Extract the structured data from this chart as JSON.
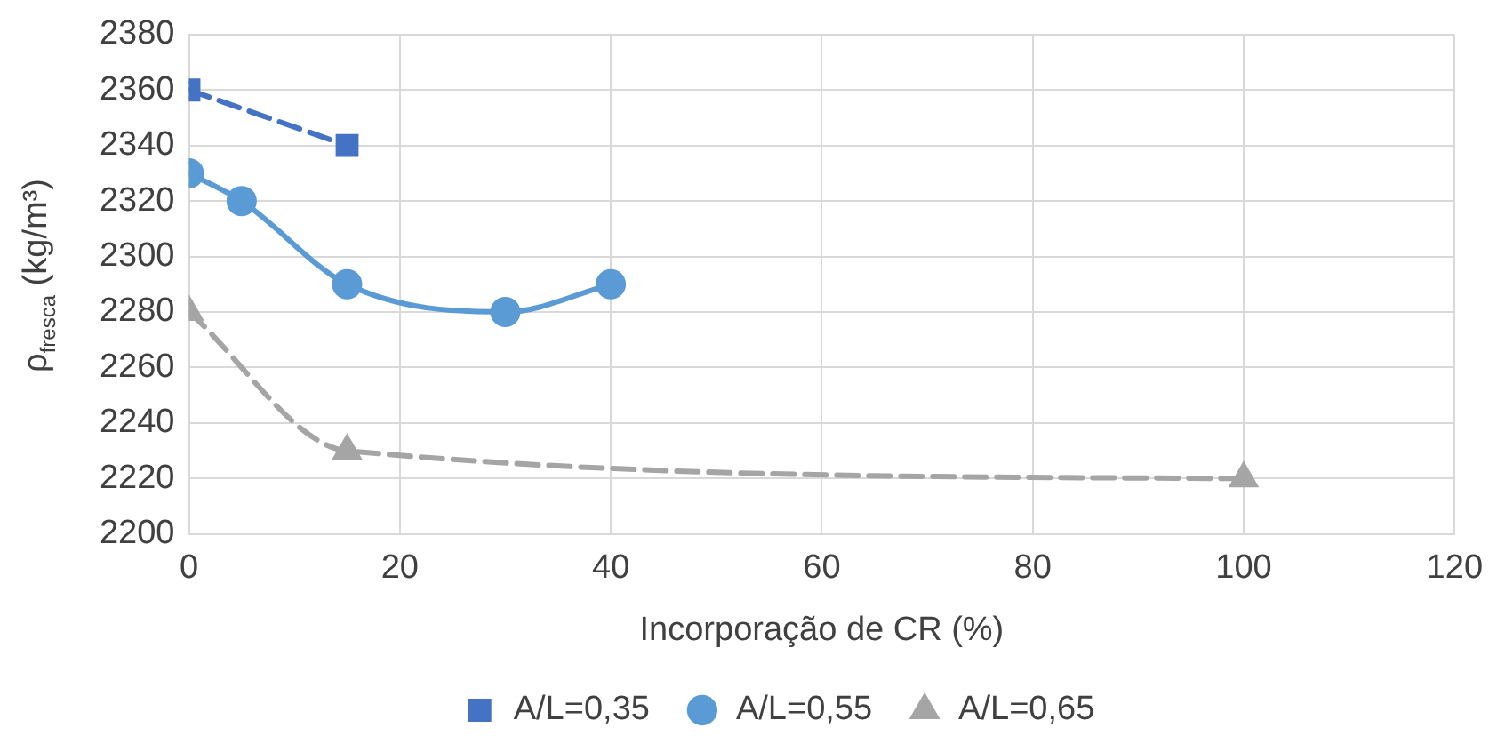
{
  "chart_data": {
    "type": "line",
    "xlabel": "Incorporação de CR (%)",
    "ylabel": "ρ$_{fresca}$ (kg/m³)",
    "xlim": [
      0,
      120
    ],
    "xticks": [
      0,
      20,
      40,
      60,
      80,
      100,
      120
    ],
    "ylim": [
      2200,
      2380
    ],
    "yticks": [
      2200,
      2220,
      2240,
      2260,
      2280,
      2300,
      2320,
      2340,
      2360,
      2380
    ],
    "grid": true,
    "legend": "bottom",
    "series": [
      {
        "name": "A/L=0,35",
        "color": "#4472c4",
        "x": [
          0,
          15
        ],
        "values": [
          2360,
          2340
        ],
        "marker": "square",
        "line_style": "dashed"
      },
      {
        "name": "A/L=0,55",
        "color": "#5b9bd5",
        "x": [
          0,
          5,
          15,
          30,
          40
        ],
        "values": [
          2330,
          2320,
          2290,
          2280,
          2290
        ],
        "marker": "circle",
        "line_style": "solid"
      },
      {
        "name": "A/L=0,65",
        "color": "#a5a5a5",
        "x": [
          0,
          15,
          100
        ],
        "values": [
          2280,
          2230,
          2220
        ],
        "marker": "triangle",
        "line_style": "dashed"
      }
    ]
  }
}
